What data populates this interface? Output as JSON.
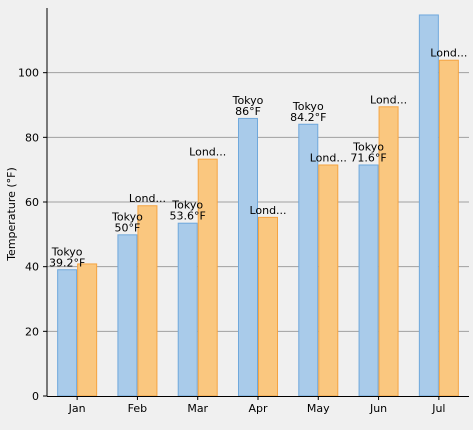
{
  "chart_data": {
    "type": "bar",
    "ylabel": "Temperature (°F)",
    "xlabel": "",
    "ylim": [
      0,
      120
    ],
    "yticks": [
      0,
      20,
      40,
      60,
      80,
      100
    ],
    "grid": true,
    "categories": [
      "Jan",
      "Feb",
      "Mar",
      "Apr",
      "May",
      "Jun",
      "Jul"
    ],
    "series": [
      {
        "name": "Tokyo",
        "color": "#a9cbea",
        "stroke": "#6fa8dc",
        "values": [
          39.2,
          50,
          53.6,
          86,
          84.2,
          71.6,
          118
        ],
        "labels": [
          "Tokyo\n39.2°F",
          "Tokyo\n50°F",
          "Tokyo\n53.6°F",
          "Tokyo\n86°F",
          "Tokyo\n84.2°F",
          "Tokyo\n71.6°F",
          ""
        ]
      },
      {
        "name": "London",
        "color": "#fac77f",
        "stroke": "#f5a442",
        "values": [
          41,
          59,
          73.4,
          55.4,
          71.6,
          89.6,
          104
        ],
        "labels": [
          "",
          "Lond...",
          "Lond...",
          "Lond...",
          "Lond...",
          "Lond...",
          "Lond..."
        ]
      }
    ]
  }
}
